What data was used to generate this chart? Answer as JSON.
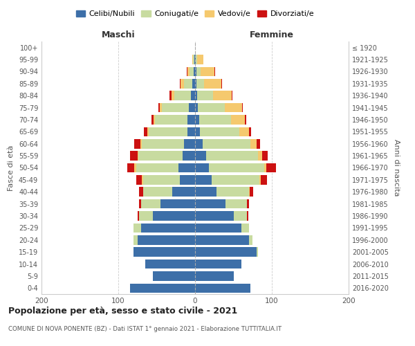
{
  "age_groups": [
    "0-4",
    "5-9",
    "10-14",
    "15-19",
    "20-24",
    "25-29",
    "30-34",
    "35-39",
    "40-44",
    "45-49",
    "50-54",
    "55-59",
    "60-64",
    "65-69",
    "70-74",
    "75-79",
    "80-84",
    "85-89",
    "90-94",
    "95-99",
    "100+"
  ],
  "birth_years": [
    "2016-2020",
    "2011-2015",
    "2006-2010",
    "2001-2005",
    "1996-2000",
    "1991-1995",
    "1986-1990",
    "1981-1985",
    "1976-1980",
    "1971-1975",
    "1966-1970",
    "1961-1965",
    "1956-1960",
    "1951-1955",
    "1946-1950",
    "1941-1945",
    "1936-1940",
    "1931-1935",
    "1926-1930",
    "1921-1925",
    "≤ 1920"
  ],
  "male": {
    "celibi": [
      85,
      55,
      65,
      80,
      75,
      70,
      55,
      45,
      30,
      20,
      22,
      16,
      14,
      10,
      10,
      8,
      5,
      4,
      2,
      1,
      0
    ],
    "coniugati": [
      0,
      0,
      0,
      0,
      5,
      10,
      18,
      25,
      38,
      48,
      55,
      58,
      55,
      50,
      42,
      35,
      22,
      10,
      5,
      2,
      0
    ],
    "vedovi": [
      0,
      0,
      0,
      0,
      0,
      0,
      0,
      0,
      0,
      1,
      2,
      1,
      2,
      2,
      2,
      3,
      4,
      5,
      3,
      1,
      0
    ],
    "divorziati": [
      0,
      0,
      0,
      0,
      0,
      0,
      2,
      3,
      5,
      8,
      9,
      10,
      8,
      5,
      3,
      2,
      2,
      1,
      1,
      0,
      0
    ]
  },
  "female": {
    "nubili": [
      72,
      50,
      60,
      80,
      70,
      60,
      50,
      40,
      28,
      22,
      18,
      14,
      10,
      6,
      5,
      4,
      3,
      2,
      2,
      1,
      0
    ],
    "coniugate": [
      0,
      0,
      0,
      2,
      5,
      10,
      18,
      28,
      42,
      62,
      72,
      68,
      62,
      52,
      42,
      35,
      20,
      10,
      5,
      2,
      0
    ],
    "vedove": [
      0,
      0,
      0,
      0,
      0,
      0,
      0,
      0,
      1,
      2,
      3,
      5,
      8,
      12,
      18,
      22,
      25,
      22,
      18,
      8,
      0
    ],
    "divorziate": [
      0,
      0,
      0,
      0,
      0,
      0,
      1,
      2,
      5,
      8,
      12,
      8,
      5,
      3,
      2,
      1,
      1,
      1,
      1,
      0,
      0
    ]
  },
  "colors": {
    "celibi": "#3d6fa8",
    "coniugati": "#c8dba0",
    "vedovi": "#f5c96e",
    "divorziati": "#cc1111"
  },
  "title": "Popolazione per età, sesso e stato civile - 2021",
  "subtitle": "COMUNE DI NOVA PONENTE (BZ) - Dati ISTAT 1° gennaio 2021 - Elaborazione TUTTITALIA.IT",
  "xlabel_left": "Maschi",
  "xlabel_right": "Femmine",
  "ylabel_left": "Fasce di età",
  "ylabel_right": "Anni di nascita",
  "xlim": 200,
  "legend_labels": [
    "Celibi/Nubili",
    "Coniugati/e",
    "Vedovi/e",
    "Divorziati/e"
  ],
  "background_color": "#ffffff",
  "grid_color": "#cccccc",
  "text_color": "#555555",
  "title_color": "#222222"
}
